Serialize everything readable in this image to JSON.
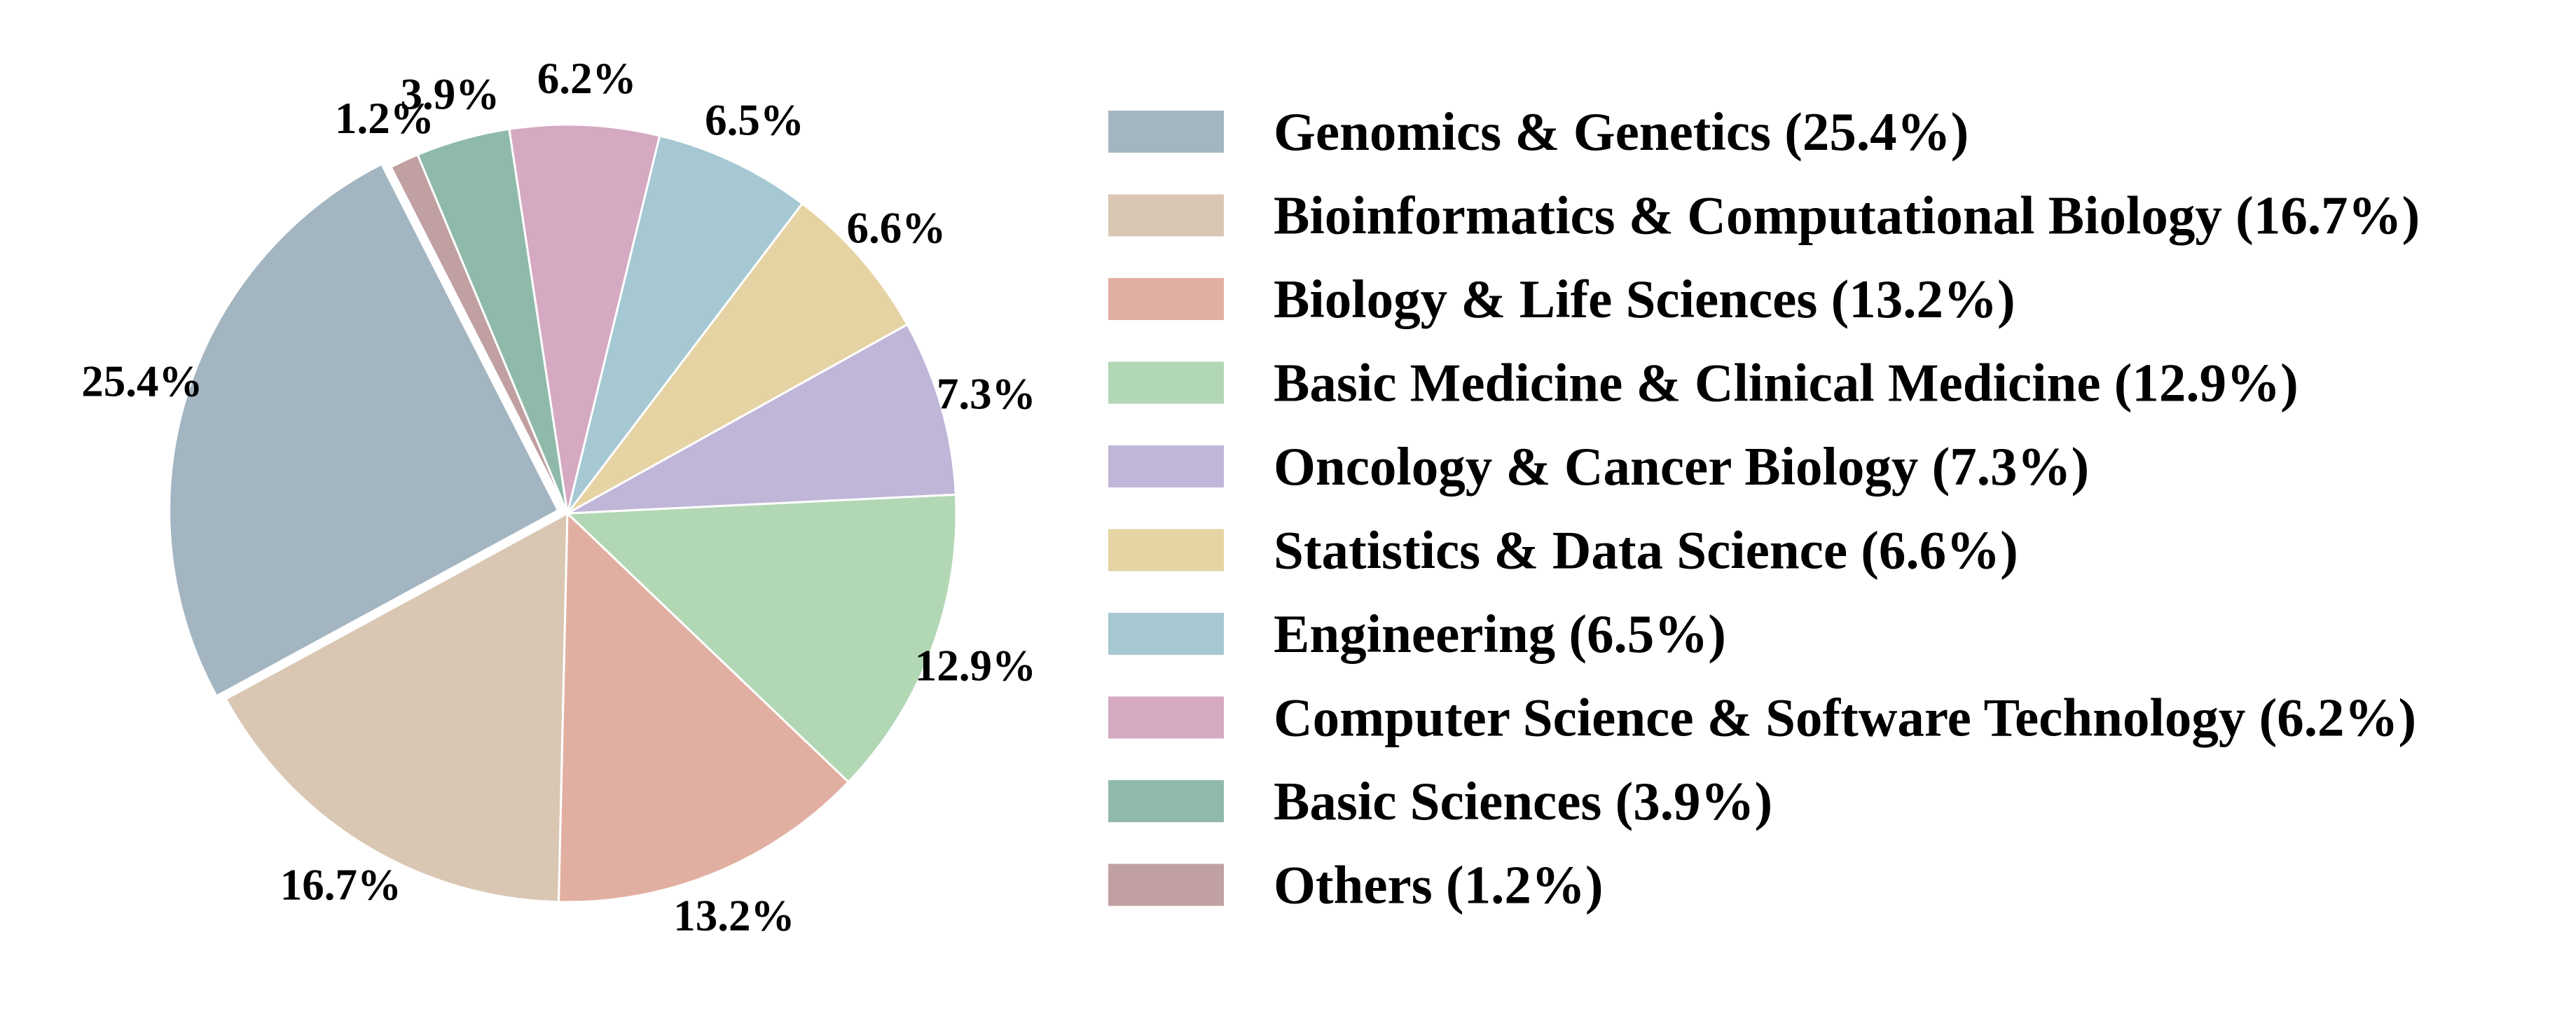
{
  "chart_data": {
    "type": "pie",
    "title": "",
    "start_angle_deg": 117,
    "direction": "counterclockwise",
    "exploded_slice": "Genomics & Genetics",
    "legend_placement": "right",
    "slices": [
      {
        "label": "Genomics & Genetics",
        "value": 25.4,
        "value_label": "25.4%",
        "legend_label": "Genomics & Genetics (25.4%)",
        "color": "#a3b5c1"
      },
      {
        "label": "Bioinformatics & Computational Biology",
        "value": 16.7,
        "value_label": "16.7%",
        "legend_label": "Bioinformatics & Computational Biology (16.7%)",
        "color": "#d9c7b4"
      },
      {
        "label": "Biology & Life Sciences",
        "value": 13.2,
        "value_label": "13.2%",
        "legend_label": "Biology & Life Sciences (13.2%)",
        "color": "#e1afa1"
      },
      {
        "label": "Basic Medicine & Clinical Medicine",
        "value": 12.9,
        "value_label": "12.9%",
        "legend_label": "Basic Medicine & Clinical Medicine (12.9%)",
        "color": "#b2d7b4"
      },
      {
        "label": "Oncology & Cancer Biology",
        "value": 7.3,
        "value_label": "7.3%",
        "legend_label": "Oncology & Cancer Biology (7.3%)",
        "color": "#c0b6d8"
      },
      {
        "label": "Statistics & Data Science",
        "value": 6.6,
        "value_label": "6.6%",
        "legend_label": "Statistics & Data Science (6.6%)",
        "color": "#e5d3a3"
      },
      {
        "label": "Engineering",
        "value": 6.5,
        "value_label": "6.5%",
        "legend_label": "Engineering (6.5%)",
        "color": "#a5c8d3"
      },
      {
        "label": "Computer Science & Software Technology",
        "value": 6.2,
        "value_label": "6.2%",
        "legend_label": "Computer Science & Software Technology (6.2%)",
        "color": "#d5a9c2"
      },
      {
        "label": "Basic Sciences",
        "value": 3.9,
        "value_label": "3.9%",
        "legend_label": "Basic Sciences (3.9%)",
        "color": "#8fbaaa"
      },
      {
        "label": "Others",
        "value": 1.2,
        "value_label": "1.2%",
        "legend_label": "Others (1.2%)",
        "color": "#c1a0a1"
      }
    ]
  }
}
